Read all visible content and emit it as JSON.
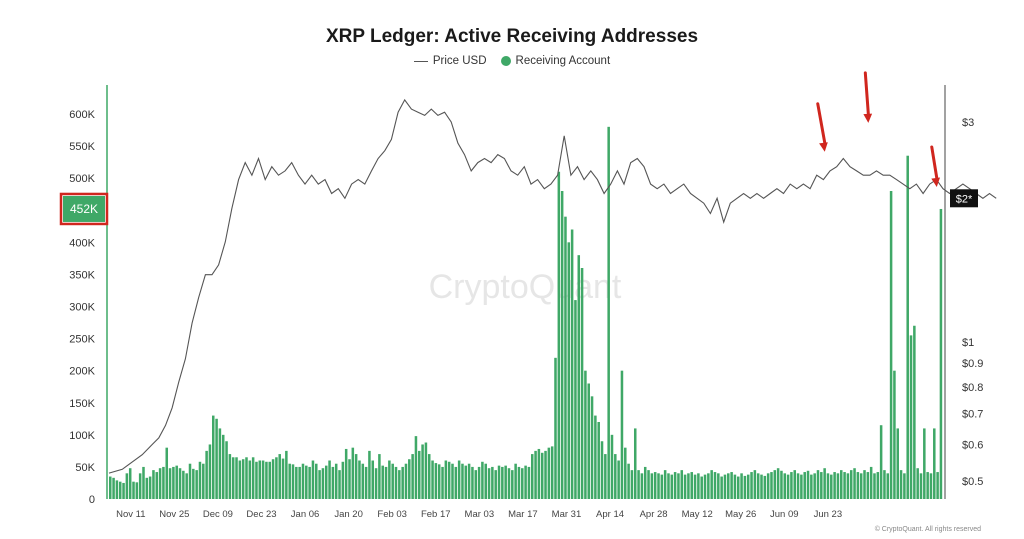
{
  "colors": {
    "bar": "#3fa867",
    "price_line": "#555555",
    "arrow": "#d0261e",
    "highlight_box": "#d0261e",
    "price_badge": "#111111"
  },
  "watermark": "CryptoQuant",
  "footer_note": "© CryptoQuant. All rights reserved",
  "chart_data": {
    "type": "bar",
    "title": "XRP Ledger: Active Receiving Addresses",
    "legend": [
      "Price USD",
      "Receiving Account"
    ],
    "legend_position": "top-center",
    "grid": false,
    "y_left": {
      "ylim": [
        0,
        600000
      ],
      "ticks": [
        0,
        50000,
        100000,
        150000,
        200000,
        250000,
        300000,
        350000,
        400000,
        450000,
        500000,
        550000,
        600000
      ],
      "tick_labels": [
        "0",
        "50K",
        "100K",
        "150K",
        "200K",
        "250K",
        "300K",
        "350K",
        "400K",
        "450K",
        "500K",
        "550K",
        "600K"
      ],
      "highlight_label": "452K"
    },
    "y_right": {
      "scale": "log",
      "tick_labels": [
        "$3",
        "$1",
        "$0.9",
        "$0.8",
        "$0.7",
        "$0.6",
        "$0.5"
      ],
      "tick_values": [
        3,
        1,
        0.9,
        0.8,
        0.7,
        0.6,
        0.5
      ],
      "current_price_label": "$2*",
      "current_price_value": 2.05
    },
    "x_tick_labels": [
      "Nov 11",
      "Nov 25",
      "Dec 09",
      "Dec 23",
      "Jan 06",
      "Jan 20",
      "Feb 03",
      "Feb 17",
      "Mar 03",
      "Mar 17",
      "Mar 31",
      "Apr 14",
      "Apr 28",
      "May 12",
      "May 26",
      "Jun 09",
      "Jun 23"
    ],
    "x_start_date": "2024-11-04",
    "series": [
      {
        "name": "Receiving Account",
        "type": "bar",
        "values": [
          35000,
          33000,
          29000,
          27000,
          25000,
          40000,
          48000,
          27000,
          26000,
          40000,
          50000,
          33000,
          35000,
          45000,
          42000,
          48000,
          50000,
          80000,
          48000,
          50000,
          52000,
          48000,
          44000,
          40000,
          55000,
          47000,
          45000,
          58000,
          55000,
          75000,
          85000,
          130000,
          125000,
          110000,
          100000,
          90000,
          70000,
          65000,
          65000,
          60000,
          62000,
          65000,
          60000,
          65000,
          58000,
          60000,
          60000,
          58000,
          58000,
          62000,
          65000,
          70000,
          63000,
          75000,
          55000,
          54000,
          50000,
          50000,
          55000,
          52000,
          50000,
          60000,
          55000,
          45000,
          48000,
          52000,
          60000,
          50000,
          55000,
          45000,
          58000,
          78000,
          62000,
          80000,
          70000,
          60000,
          55000,
          50000,
          75000,
          60000,
          48000,
          70000,
          52000,
          50000,
          60000,
          55000,
          50000,
          45000,
          50000,
          55000,
          62000,
          70000,
          98000,
          75000,
          85000,
          88000,
          70000,
          60000,
          56000,
          54000,
          50000,
          60000,
          58000,
          55000,
          50000,
          60000,
          55000,
          52000,
          55000,
          50000,
          45000,
          50000,
          58000,
          55000,
          48000,
          50000,
          45000,
          52000,
          50000,
          52000,
          48000,
          45000,
          55000,
          50000,
          48000,
          52000,
          50000,
          70000,
          75000,
          78000,
          72000,
          75000,
          80000,
          82000,
          220000,
          510000,
          480000,
          440000,
          400000,
          420000,
          310000,
          380000,
          360000,
          200000,
          180000,
          160000,
          130000,
          120000,
          90000,
          70000,
          580000,
          100000,
          70000,
          60000,
          200000,
          80000,
          55000,
          45000,
          110000,
          45000,
          40000,
          50000,
          45000,
          40000,
          42000,
          40000,
          38000,
          45000,
          40000,
          38000,
          42000,
          40000,
          45000,
          38000,
          40000,
          42000,
          38000,
          40000,
          35000,
          38000,
          40000,
          45000,
          42000,
          40000,
          35000,
          38000,
          40000,
          42000,
          38000,
          35000,
          40000,
          36000,
          38000,
          42000,
          45000,
          40000,
          38000,
          36000,
          40000,
          42000,
          45000,
          48000,
          44000,
          40000,
          38000,
          42000,
          45000,
          40000,
          38000,
          42000,
          44000,
          38000,
          40000,
          45000,
          42000,
          48000,
          40000,
          38000,
          42000,
          40000,
          45000,
          42000,
          40000,
          45000,
          48000,
          42000,
          40000,
          45000,
          42000,
          50000,
          40000,
          42000,
          115000,
          45000,
          40000,
          480000,
          200000,
          110000,
          45000,
          40000,
          535000,
          255000,
          270000,
          48000,
          40000,
          110000,
          42000,
          40000,
          110000,
          42000,
          452000
        ]
      },
      {
        "name": "Price USD",
        "type": "line",
        "axis": "right",
        "points": [
          [
            0,
            0.52
          ],
          [
            4,
            0.53
          ],
          [
            7,
            0.55
          ],
          [
            10,
            0.57
          ],
          [
            13,
            0.6
          ],
          [
            15,
            0.62
          ],
          [
            17,
            0.66
          ],
          [
            19,
            0.72
          ],
          [
            21,
            0.82
          ],
          [
            23,
            0.92
          ],
          [
            25,
            1.1
          ],
          [
            27,
            1.25
          ],
          [
            29,
            1.4
          ],
          [
            31,
            1.4
          ],
          [
            33,
            1.47
          ],
          [
            35,
            1.65
          ],
          [
            37,
            1.95
          ],
          [
            39,
            2.25
          ],
          [
            41,
            2.45
          ],
          [
            43,
            2.3
          ],
          [
            45,
            2.5
          ],
          [
            47,
            2.25
          ],
          [
            49,
            2.4
          ],
          [
            51,
            2.3
          ],
          [
            53,
            2.35
          ],
          [
            55,
            2.45
          ],
          [
            57,
            2.3
          ],
          [
            59,
            2.2
          ],
          [
            61,
            2.3
          ],
          [
            63,
            2.2
          ],
          [
            65,
            2.25
          ],
          [
            67,
            2.1
          ],
          [
            69,
            2.15
          ],
          [
            71,
            2.05
          ],
          [
            73,
            2.2
          ],
          [
            75,
            2.25
          ],
          [
            77,
            2.2
          ],
          [
            79,
            2.35
          ],
          [
            81,
            2.5
          ],
          [
            83,
            2.6
          ],
          [
            85,
            2.75
          ],
          [
            87,
            3.15
          ],
          [
            89,
            3.35
          ],
          [
            91,
            3.2
          ],
          [
            93,
            3.15
          ],
          [
            95,
            3.1
          ],
          [
            97,
            3.2
          ],
          [
            99,
            3.1
          ],
          [
            101,
            3.15
          ],
          [
            103,
            3.0
          ],
          [
            105,
            2.7
          ],
          [
            107,
            2.55
          ],
          [
            109,
            2.35
          ],
          [
            111,
            2.45
          ],
          [
            113,
            2.5
          ],
          [
            115,
            2.45
          ],
          [
            117,
            2.55
          ],
          [
            119,
            2.5
          ],
          [
            121,
            2.35
          ],
          [
            123,
            2.3
          ],
          [
            125,
            2.4
          ],
          [
            127,
            2.2
          ],
          [
            129,
            2.25
          ],
          [
            131,
            2.15
          ],
          [
            133,
            2.2
          ],
          [
            135,
            2.3
          ],
          [
            137,
            2.8
          ],
          [
            139,
            2.3
          ],
          [
            141,
            2.4
          ],
          [
            143,
            2.25
          ],
          [
            145,
            2.35
          ],
          [
            147,
            2.25
          ],
          [
            149,
            2.1
          ],
          [
            151,
            2.2
          ],
          [
            153,
            2.35
          ],
          [
            155,
            2.2
          ],
          [
            157,
            2.45
          ],
          [
            159,
            2.5
          ],
          [
            161,
            2.4
          ],
          [
            163,
            2.2
          ],
          [
            165,
            2.15
          ],
          [
            167,
            2.2
          ],
          [
            169,
            2.1
          ],
          [
            171,
            2.15
          ],
          [
            173,
            2.2
          ],
          [
            175,
            2.1
          ],
          [
            177,
            2.05
          ],
          [
            179,
            2.0
          ],
          [
            181,
            1.9
          ],
          [
            183,
            2.05
          ],
          [
            185,
            1.82
          ],
          [
            187,
            2.0
          ],
          [
            189,
            2.05
          ],
          [
            191,
            2.1
          ],
          [
            193,
            2.05
          ],
          [
            195,
            2.1
          ],
          [
            197,
            2.05
          ],
          [
            199,
            2.1
          ],
          [
            201,
            2.15
          ],
          [
            203,
            2.1
          ],
          [
            205,
            2.2
          ],
          [
            207,
            2.15
          ],
          [
            209,
            2.2
          ],
          [
            211,
            2.15
          ],
          [
            213,
            2.3
          ],
          [
            215,
            2.25
          ],
          [
            217,
            2.35
          ],
          [
            219,
            2.4
          ],
          [
            221,
            2.5
          ],
          [
            223,
            2.4
          ],
          [
            225,
            2.35
          ],
          [
            227,
            2.3
          ],
          [
            229,
            2.3
          ],
          [
            231,
            2.35
          ],
          [
            233,
            2.3
          ],
          [
            235,
            2.3
          ],
          [
            237,
            2.25
          ],
          [
            239,
            2.2
          ],
          [
            241,
            2.15
          ],
          [
            243,
            2.2
          ],
          [
            245,
            2.1
          ],
          [
            247,
            2.2
          ],
          [
            249,
            2.25
          ],
          [
            251,
            2.15
          ],
          [
            253,
            2.1
          ],
          [
            255,
            2.15
          ],
          [
            257,
            2.2
          ],
          [
            259,
            2.15
          ],
          [
            261,
            2.1
          ],
          [
            263,
            2.05
          ],
          [
            265,
            2.1
          ],
          [
            267,
            2.05
          ]
        ]
      }
    ]
  }
}
